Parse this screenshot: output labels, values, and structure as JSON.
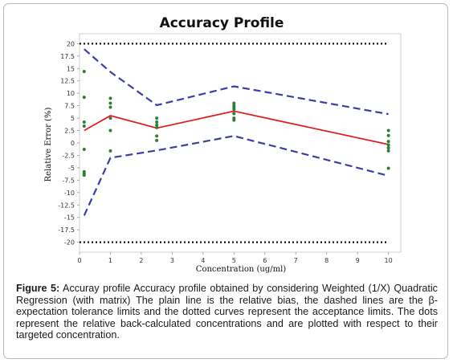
{
  "chart_data": {
    "type": "line",
    "title": "Accuracy Profile",
    "xlabel": "Concentration (ug/ml)",
    "ylabel": "Relative Error (%)",
    "xlim": [
      0,
      10.4
    ],
    "ylim": [
      -22,
      22
    ],
    "x_ticks": [
      "0",
      "1",
      "2",
      "3",
      "4",
      "5",
      "6",
      "7",
      "8",
      "9",
      "10"
    ],
    "y_ticks": [
      "20",
      "17.5",
      "15",
      "12.5",
      "10",
      "7.5",
      "5",
      "2.5",
      "0",
      "-2.5",
      "-5",
      "-7.5",
      "-10",
      "-12.5",
      "-15",
      "-17.5",
      "-20"
    ],
    "series": [
      {
        "style": "solid",
        "color": "#e0201e",
        "x": [
          0.15,
          1,
          2.5,
          5,
          10
        ],
        "y": [
          2.5,
          5.5,
          3.0,
          6.4,
          -0.3
        ]
      },
      {
        "style": "dashed",
        "color": "#3a3fa6",
        "x": [
          0.15,
          1,
          2.5,
          5,
          10
        ],
        "y": [
          18.9,
          14.3,
          7.6,
          11.4,
          5.8
        ]
      },
      {
        "style": "dashed",
        "color": "#3a3fa6",
        "x": [
          0.15,
          1,
          2.5,
          5,
          10
        ],
        "y": [
          -14.6,
          -3.0,
          -1.5,
          1.4,
          -6.6
        ]
      },
      {
        "style": "dotted",
        "color": "#111111",
        "x": [
          0,
          10
        ],
        "y": [
          20,
          20
        ]
      },
      {
        "style": "dotted",
        "color": "#111111",
        "x": [
          0,
          10
        ],
        "y": [
          -20,
          -20
        ]
      }
    ],
    "points": {
      "color": "#2e7d32",
      "x": [
        0.15,
        0.15,
        0.15,
        0.15,
        0.15,
        0.15,
        0.15,
        0.15,
        1,
        1,
        1,
        1,
        1,
        1,
        2.5,
        2.5,
        2.5,
        2.5,
        2.5,
        2.5,
        5,
        5,
        5,
        5,
        5,
        5,
        5,
        10,
        10,
        10,
        10,
        10,
        10,
        10
      ],
      "y": [
        14.4,
        9.2,
        4.2,
        3.4,
        -1.3,
        -5.8,
        -6.5,
        -6.2,
        9.0,
        8.0,
        7.2,
        5.0,
        2.5,
        -1.6,
        5.0,
        4.2,
        3.1,
        1.4,
        0.5,
        3.6,
        8.0,
        7.5,
        6.8,
        5.9,
        5.0,
        4.6,
        7.2,
        2.5,
        1.5,
        0.3,
        -0.4,
        -1.0,
        -1.6,
        -5.1
      ]
    }
  },
  "caption": {
    "label": "Figure 5:",
    "text": " Accuray profile Accuracy profile obtained by considering Weighted (1/X) Quadratic Regression (with matrix) The plain line is the relative bias, the dashed lines are the β-expectation tolerance limits and the dotted curves represent the acceptance limits. The dots represent the relative back-calculated concentrations and are plotted with respect to their targeted concentration."
  }
}
